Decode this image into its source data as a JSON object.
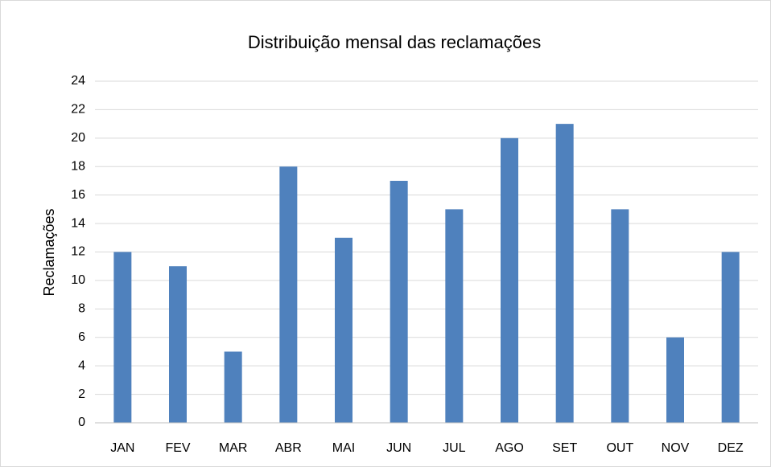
{
  "chart_data": {
    "type": "bar",
    "title": "Distribuição mensal das reclamações",
    "y_label": "Reclamações",
    "categories": [
      "JAN",
      "FEV",
      "MAR",
      "ABR",
      "MAI",
      "JUN",
      "JUL",
      "AGO",
      "SET",
      "OUT",
      "NOV",
      "DEZ"
    ],
    "values": [
      12,
      11,
      5,
      18,
      13,
      17,
      15,
      20,
      21,
      15,
      6,
      12
    ],
    "color": "#4f81bd",
    "ylim": [
      0,
      24
    ],
    "yticks": [
      0,
      2,
      4,
      6,
      8,
      10,
      12,
      14,
      16,
      18,
      20,
      22,
      24
    ],
    "grid": true
  }
}
